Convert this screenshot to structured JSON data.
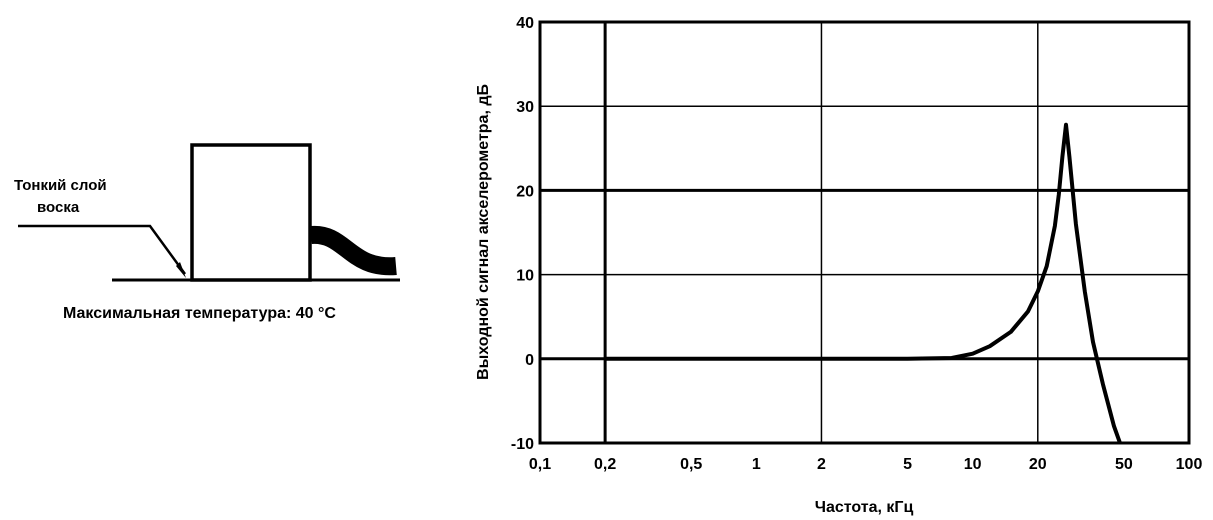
{
  "mounting_diagram": {
    "layer_label": "Тонкий слой\nвоска",
    "max_temp_label": "Максимальная температура: 40 °C"
  },
  "chart_data": {
    "type": "line",
    "xlabel": "Частота, кГц",
    "ylabel": "Выходной сигнал акселерометра, дБ",
    "x_scale": "log",
    "xlim": [
      0.1,
      100
    ],
    "ylim": [
      -10,
      40
    ],
    "x_ticks": [
      0.1,
      0.2,
      0.5,
      1,
      2,
      5,
      10,
      20,
      50,
      100
    ],
    "x_tick_labels": [
      "0,1",
      "0,2",
      "0,5",
      "1",
      "2",
      "5",
      "10",
      "20",
      "50",
      "100"
    ],
    "y_ticks": [
      -10,
      0,
      10,
      20,
      30,
      40
    ],
    "y_tick_labels": [
      "-10",
      "0",
      "10",
      "20",
      "30",
      "40"
    ],
    "grid": true,
    "series": [
      {
        "x": [
          0.2,
          1,
          5,
          8,
          10,
          12,
          15,
          18,
          20,
          22,
          24,
          25,
          26,
          27,
          28,
          30,
          33,
          36,
          40,
          45,
          48
        ],
        "y": [
          0,
          0,
          0,
          0.1,
          0.6,
          1.5,
          3.2,
          5.6,
          8.0,
          11.0,
          15.8,
          19.5,
          24.0,
          27.8,
          24.0,
          16.0,
          8.0,
          2.0,
          -3.0,
          -8.0,
          -10.0
        ]
      }
    ]
  }
}
